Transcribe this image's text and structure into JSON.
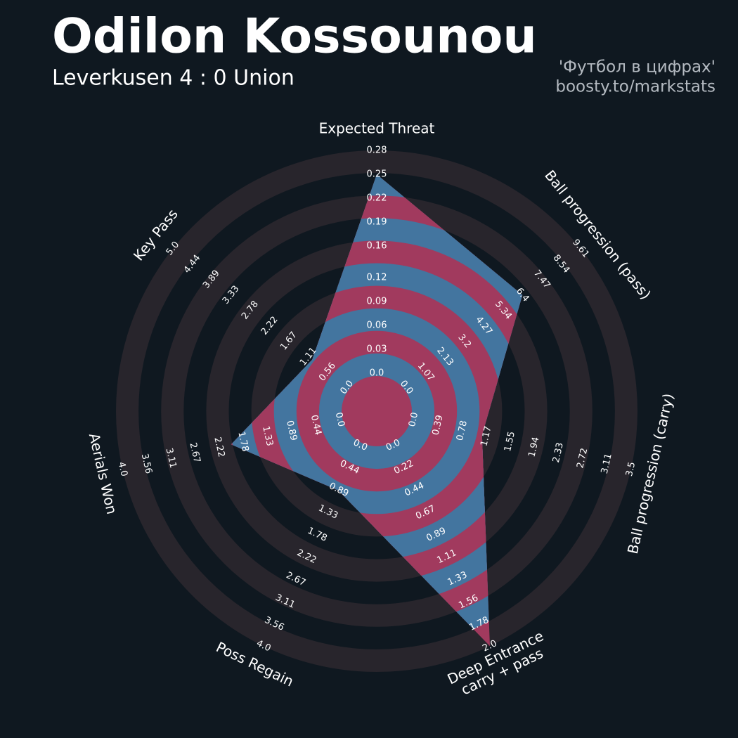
{
  "chart_data": {
    "type": "radar",
    "title": "Odilon Kossounou",
    "subtitle": "Leverkusen 4 : 0 Union",
    "source": [
      "'Футбол в цифрах'",
      "boosty.to/markstats"
    ],
    "categories": [
      "Expected Threat",
      "Ball progression (pass)",
      "Ball progression (carry)",
      "Deep Entrance\ncarry + pass",
      "Poss Regain",
      "Aerials Won",
      "Key Pass"
    ],
    "values": [
      0.25,
      6.4,
      1.1,
      2.0,
      0.9,
      2.0,
      1.0
    ],
    "axes": [
      {
        "lim": [
          0,
          0.28
        ],
        "ticks": [
          {
            "value": 0,
            "label": "0.0"
          },
          0.03,
          0.06,
          0.09,
          0.12,
          0.16,
          0.19,
          0.22,
          0.25,
          0.28
        ]
      },
      {
        "lim": [
          0,
          9.61
        ],
        "ticks": [
          {
            "value": 0,
            "label": "0.0"
          },
          1.07,
          2.13,
          3.2,
          4.27,
          5.34,
          6.4,
          7.47,
          8.54,
          9.61
        ]
      },
      {
        "lim": [
          0,
          3.5
        ],
        "ticks": [
          {
            "value": 0,
            "label": "0.0"
          },
          0.39,
          0.78,
          1.17,
          1.55,
          1.94,
          2.33,
          2.72,
          3.11,
          3.5
        ]
      },
      {
        "lim": [
          0,
          2
        ],
        "ticks": [
          {
            "value": 0,
            "label": "0.0"
          },
          0.22,
          0.44,
          0.67,
          0.89,
          1.11,
          1.33,
          1.56,
          1.78,
          {
            "value": 2,
            "label": "2.0"
          }
        ]
      },
      {
        "lim": [
          0,
          4
        ],
        "ticks": [
          {
            "value": 0,
            "label": "0.0"
          },
          0.44,
          0.89,
          1.33,
          1.78,
          2.22,
          2.67,
          3.11,
          3.56,
          {
            "value": 4,
            "label": "4.0"
          }
        ]
      },
      {
        "lim": [
          0,
          4
        ],
        "ticks": [
          {
            "value": 0,
            "label": "0.0"
          },
          0.44,
          0.89,
          1.33,
          1.78,
          2.22,
          2.67,
          3.11,
          3.56,
          {
            "value": 4,
            "label": "4.0"
          }
        ]
      },
      {
        "lim": [
          0,
          5
        ],
        "ticks": [
          {
            "value": 0,
            "label": "0.0"
          },
          0.56,
          1.11,
          1.67,
          2.22,
          2.78,
          3.33,
          3.89,
          4.44,
          {
            "value": 5,
            "label": "5.0"
          }
        ]
      }
    ],
    "colors": {
      "fill": "#43759f",
      "alt_fill": "#a13a5e",
      "rings": "#28252c",
      "background": "#0f1820"
    }
  }
}
